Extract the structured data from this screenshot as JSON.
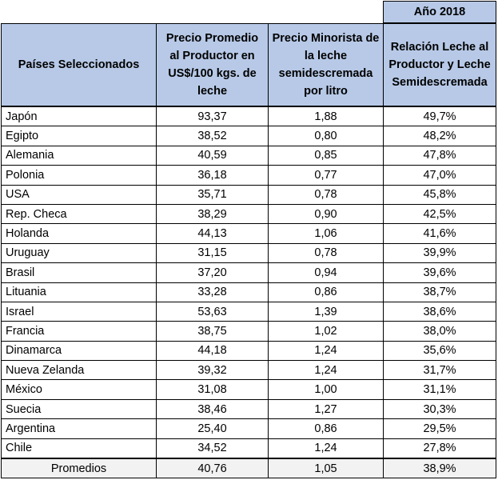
{
  "year_label": "Año 2018",
  "headers": {
    "country": "Países Seleccionados",
    "producer_price": "Precio Promedio al Productor en US$/100 kgs. de leche",
    "retail_price": "Precio Minorista de la leche semidescremada por litro",
    "ratio": "Relación Leche al Productor y Leche Semidescremada"
  },
  "rows": [
    {
      "country": "Japón",
      "producer_price": "93,37",
      "retail_price": "1,88",
      "ratio": "49,7%"
    },
    {
      "country": "Egipto",
      "producer_price": "38,52",
      "retail_price": "0,80",
      "ratio": "48,2%"
    },
    {
      "country": "Alemania",
      "producer_price": "40,59",
      "retail_price": "0,85",
      "ratio": "47,8%"
    },
    {
      "country": "Polonia",
      "producer_price": "36,18",
      "retail_price": "0,77",
      "ratio": "47,0%"
    },
    {
      "country": "USA",
      "producer_price": "35,71",
      "retail_price": "0,78",
      "ratio": "45,8%"
    },
    {
      "country": "Rep. Checa",
      "producer_price": "38,29",
      "retail_price": "0,90",
      "ratio": "42,5%"
    },
    {
      "country": "Holanda",
      "producer_price": "44,13",
      "retail_price": "1,06",
      "ratio": "41,6%"
    },
    {
      "country": "Uruguay",
      "producer_price": "31,15",
      "retail_price": "0,78",
      "ratio": "39,9%"
    },
    {
      "country": "Brasil",
      "producer_price": "37,20",
      "retail_price": "0,94",
      "ratio": "39,6%"
    },
    {
      "country": "Lituania",
      "producer_price": "33,28",
      "retail_price": "0,86",
      "ratio": "38,7%"
    },
    {
      "country": "Israel",
      "producer_price": "53,63",
      "retail_price": "1,39",
      "ratio": "38,6%"
    },
    {
      "country": "Francia",
      "producer_price": "38,75",
      "retail_price": "1,02",
      "ratio": "38,0%"
    },
    {
      "country": "Dinamarca",
      "producer_price": "44,18",
      "retail_price": "1,24",
      "ratio": "35,6%"
    },
    {
      "country": "Nueva Zelanda",
      "producer_price": "39,32",
      "retail_price": "1,24",
      "ratio": "31,7%"
    },
    {
      "country": "México",
      "producer_price": "31,08",
      "retail_price": "1,00",
      "ratio": "31,1%"
    },
    {
      "country": "Suecia",
      "producer_price": "38,46",
      "retail_price": "1,27",
      "ratio": "30,3%"
    },
    {
      "country": "Argentina",
      "producer_price": "25,40",
      "retail_price": "0,86",
      "ratio": "29,5%"
    },
    {
      "country": "Chile",
      "producer_price": "34,52",
      "retail_price": "1,24",
      "ratio": "27,8%"
    }
  ],
  "averages": {
    "label": "Promedios",
    "producer_price": "40,76",
    "retail_price": "1,05",
    "ratio": "38,9%"
  },
  "colors": {
    "header_fill": "#b7c9e7",
    "average_fill": "#f2f2f2"
  }
}
